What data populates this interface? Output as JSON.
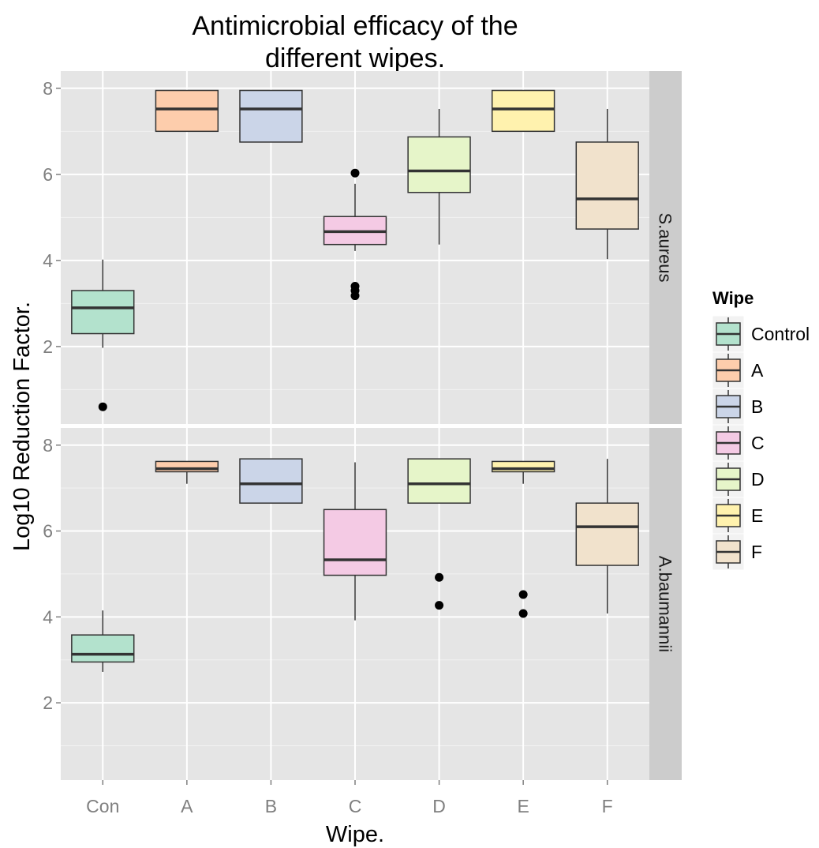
{
  "chart_data": {
    "type": "boxplot",
    "title_lines": [
      "Antimicrobial efficacy of the",
      "different wipes."
    ],
    "xlabel": "Wipe.",
    "ylabel": "Log10 Reduction Factor.",
    "categories": [
      "Con",
      "A",
      "B",
      "C",
      "D",
      "E",
      "F"
    ],
    "ylim": [
      0.2,
      8.4
    ],
    "y_ticks": [
      2,
      4,
      6,
      8
    ],
    "y_tick_labels": [
      "2",
      "4",
      "6",
      "8"
    ],
    "grid": true,
    "legend": {
      "title": "Wipe",
      "position": "right",
      "entries": [
        {
          "label": "Control",
          "color": "#b3e2cd"
        },
        {
          "label": "A",
          "color": "#fdcdac"
        },
        {
          "label": "B",
          "color": "#cbd5e8"
        },
        {
          "label": "C",
          "color": "#f4cae4"
        },
        {
          "label": "D",
          "color": "#e6f5c9"
        },
        {
          "label": "E",
          "color": "#fff2ae"
        },
        {
          "label": "F",
          "color": "#f1e2cc"
        }
      ]
    },
    "panels": [
      {
        "strip_label": "S.aureus",
        "boxes": [
          {
            "category": "Con",
            "low": 1.97,
            "q1": 2.3,
            "median": 2.9,
            "q3": 3.3,
            "high": 4.02,
            "outliers": [
              0.6
            ]
          },
          {
            "category": "A",
            "low": 7.0,
            "q1": 7.0,
            "median": 7.52,
            "q3": 7.95,
            "high": 7.95,
            "outliers": []
          },
          {
            "category": "B",
            "low": 6.75,
            "q1": 6.75,
            "median": 7.52,
            "q3": 7.95,
            "high": 7.95,
            "outliers": []
          },
          {
            "category": "C",
            "low": 4.22,
            "q1": 4.37,
            "median": 4.67,
            "q3": 5.02,
            "high": 5.78,
            "outliers": [
              6.03,
              3.4,
              3.3,
              3.18
            ]
          },
          {
            "category": "D",
            "low": 4.37,
            "q1": 5.58,
            "median": 6.08,
            "q3": 6.87,
            "high": 7.52,
            "outliers": []
          },
          {
            "category": "E",
            "low": 7.0,
            "q1": 7.0,
            "median": 7.52,
            "q3": 7.95,
            "high": 7.95,
            "outliers": []
          },
          {
            "category": "F",
            "low": 4.03,
            "q1": 4.73,
            "median": 5.43,
            "q3": 6.75,
            "high": 7.52,
            "outliers": []
          }
        ]
      },
      {
        "strip_label": "A.baumannii",
        "boxes": [
          {
            "category": "Con",
            "low": 2.72,
            "q1": 2.95,
            "median": 3.13,
            "q3": 3.58,
            "high": 4.15,
            "outliers": []
          },
          {
            "category": "A",
            "low": 7.1,
            "q1": 7.38,
            "median": 7.45,
            "q3": 7.62,
            "high": 7.62,
            "outliers": []
          },
          {
            "category": "B",
            "low": 6.65,
            "q1": 6.65,
            "median": 7.1,
            "q3": 7.68,
            "high": 7.68,
            "outliers": []
          },
          {
            "category": "C",
            "low": 3.92,
            "q1": 4.97,
            "median": 5.33,
            "q3": 6.5,
            "high": 7.6,
            "outliers": []
          },
          {
            "category": "D",
            "low": 6.65,
            "q1": 6.65,
            "median": 7.1,
            "q3": 7.68,
            "high": 7.68,
            "outliers": [
              4.92,
              4.27
            ]
          },
          {
            "category": "E",
            "low": 7.1,
            "q1": 7.38,
            "median": 7.45,
            "q3": 7.62,
            "high": 7.62,
            "outliers": [
              4.52,
              4.08
            ]
          },
          {
            "category": "F",
            "low": 4.08,
            "q1": 5.2,
            "median": 6.1,
            "q3": 6.65,
            "high": 7.68,
            "outliers": []
          }
        ]
      }
    ]
  },
  "colors": {
    "panel_background": "#e5e5e5",
    "grid_major": "#ffffff",
    "grid_minor": "#f2f2f2",
    "strip_background": "#cccccc",
    "box_outline": "#333333",
    "outlier": "#000000"
  }
}
